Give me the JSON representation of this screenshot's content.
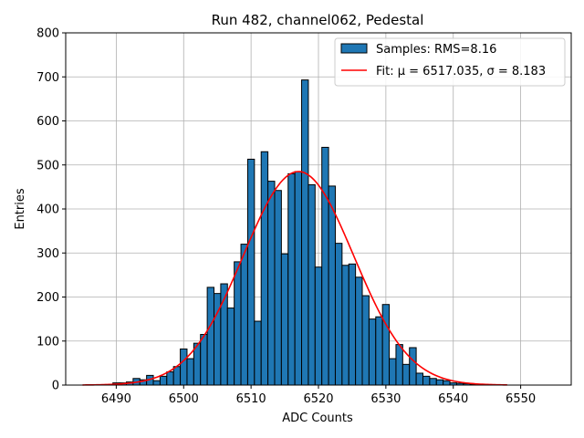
{
  "chart_data": {
    "type": "bar",
    "title": "Run 482, channel062, Pedestal",
    "xlabel": "ADC Counts",
    "ylabel": "Entries",
    "xlim": [
      6482.5,
      6557.5
    ],
    "ylim": [
      0,
      800
    ],
    "xticks": [
      "6490",
      "6500",
      "6510",
      "6520",
      "6530",
      "6540",
      "6550"
    ],
    "yticks": [
      "0",
      "100",
      "200",
      "300",
      "400",
      "500",
      "600",
      "700",
      "800"
    ],
    "grid": true,
    "legend_position": "top-right",
    "bar_color": "#1f77b4",
    "fit_color": "#ff0000",
    "histogram": {
      "name": "Samples: RMS=8.16",
      "bin_width": 1,
      "x": [
        6490,
        6491,
        6492,
        6493,
        6494,
        6495,
        6496,
        6497,
        6498,
        6499,
        6500,
        6501,
        6502,
        6503,
        6504,
        6505,
        6506,
        6507,
        6508,
        6509,
        6510,
        6511,
        6512,
        6513,
        6514,
        6515,
        6516,
        6517,
        6518,
        6519,
        6520,
        6521,
        6522,
        6523,
        6524,
        6525,
        6526,
        6527,
        6528,
        6529,
        6530,
        6531,
        6532,
        6533,
        6534,
        6535,
        6536,
        6537,
        6538,
        6539,
        6540,
        6541,
        6542,
        6543,
        6544
      ],
      "values": [
        5,
        5,
        7,
        15,
        12,
        22,
        10,
        20,
        30,
        42,
        82,
        60,
        95,
        115,
        222,
        208,
        230,
        175,
        280,
        320,
        513,
        145,
        530,
        463,
        442,
        298,
        480,
        485,
        693,
        455,
        268,
        540,
        452,
        322,
        272,
        275,
        245,
        203,
        150,
        155,
        183,
        60,
        92,
        47,
        85,
        27,
        20,
        15,
        12,
        10,
        5,
        4,
        3,
        2,
        2
      ]
    },
    "fit": {
      "name": "Fit: μ = 6517.035, σ = 8.183",
      "mu": 6517.035,
      "sigma": 8.183,
      "amplitude": 485,
      "x_range": [
        6485,
        6548
      ]
    }
  }
}
